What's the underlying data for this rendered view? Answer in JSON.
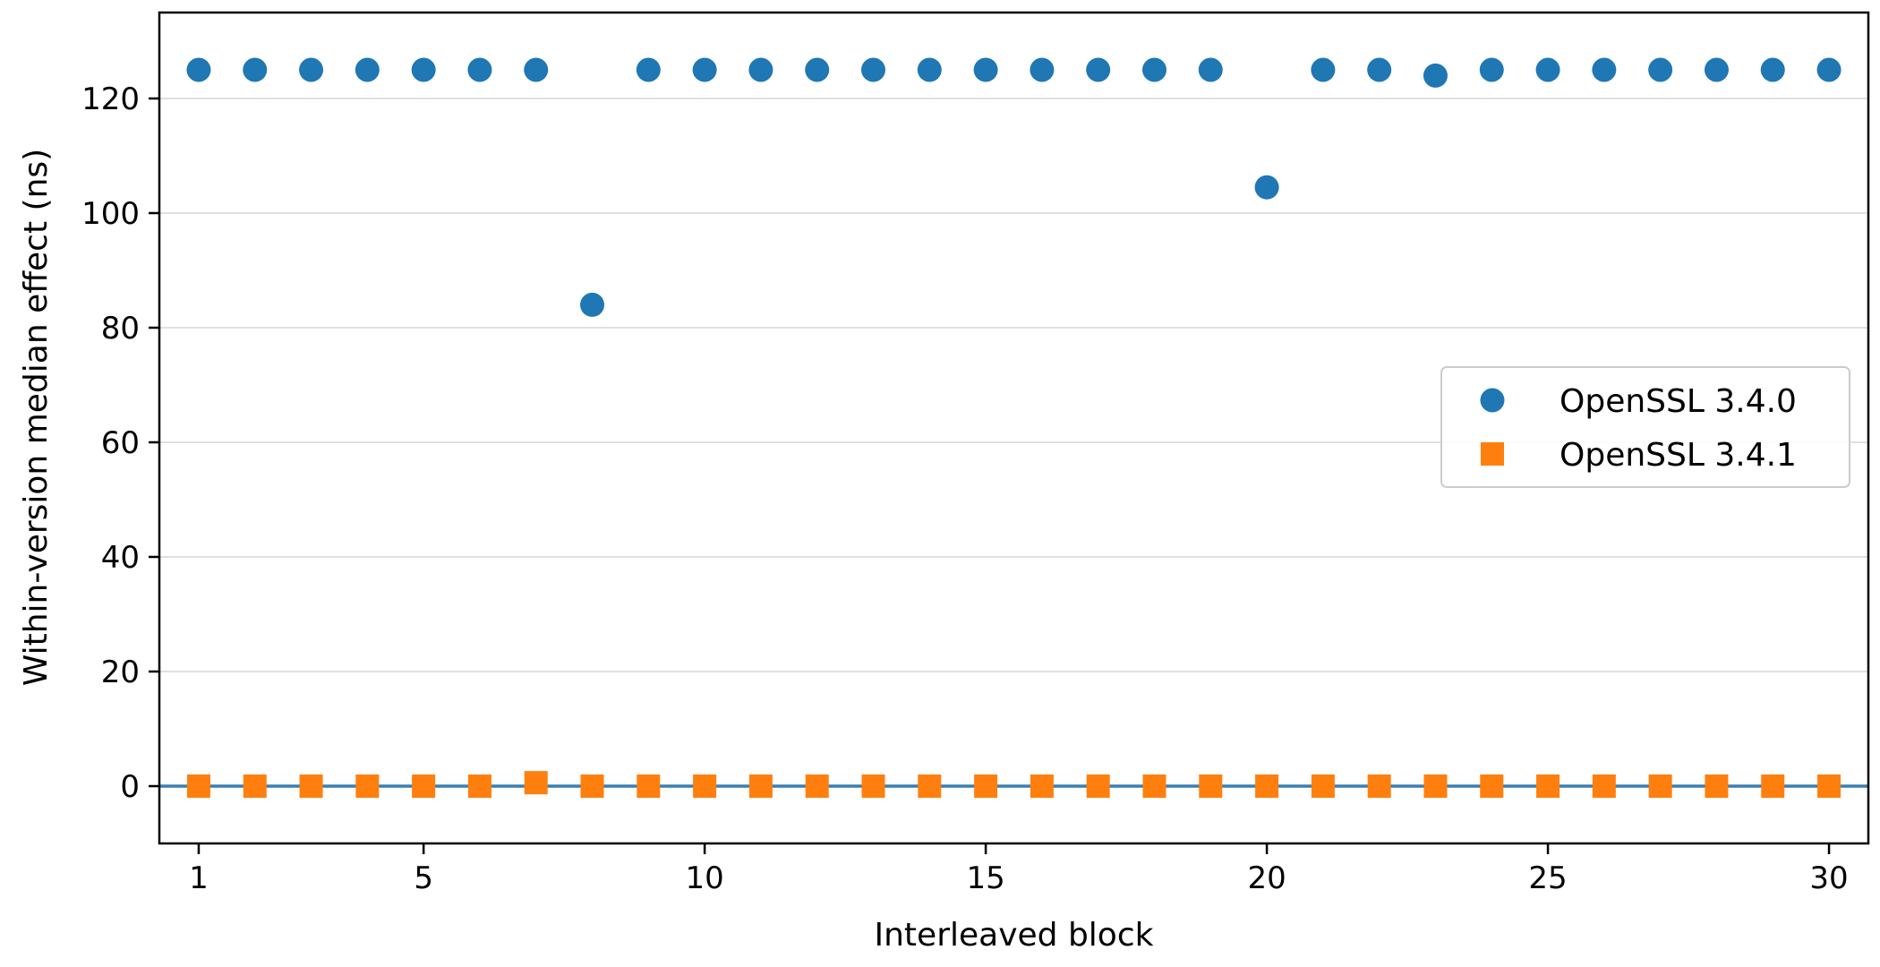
{
  "chart_data": {
    "type": "scatter",
    "xlabel": "Interleaved block",
    "ylabel": "Within-version median effect (ns)",
    "xlim": [
      0.3,
      30.7
    ],
    "ylim": [
      -10,
      135
    ],
    "xticks": [
      1,
      5,
      10,
      15,
      20,
      25,
      30
    ],
    "yticks": [
      0,
      20,
      40,
      60,
      80,
      100,
      120
    ],
    "grid": "horizontal",
    "legend_position": "center-right",
    "reference_line": {
      "y": 0,
      "color": "#3b7fb0"
    },
    "series": [
      {
        "name": "OpenSSL 3.4.0",
        "marker": "circle",
        "color": "#1f77b4",
        "x": [
          1,
          2,
          3,
          4,
          5,
          6,
          7,
          8,
          9,
          10,
          11,
          12,
          13,
          14,
          15,
          16,
          17,
          18,
          19,
          20,
          21,
          22,
          23,
          24,
          25,
          26,
          27,
          28,
          29,
          30
        ],
        "y": [
          125,
          125,
          125,
          125,
          125,
          125,
          125,
          84,
          125,
          125,
          125,
          125,
          125,
          125,
          125,
          125,
          125,
          125,
          125,
          104.5,
          125,
          125,
          124,
          125,
          125,
          125,
          125,
          125,
          125,
          125
        ]
      },
      {
        "name": "OpenSSL 3.4.1",
        "marker": "square",
        "color": "#ff7f0e",
        "x": [
          1,
          2,
          3,
          4,
          5,
          6,
          7,
          8,
          9,
          10,
          11,
          12,
          13,
          14,
          15,
          16,
          17,
          18,
          19,
          20,
          21,
          22,
          23,
          24,
          25,
          26,
          27,
          28,
          29,
          30
        ],
        "y": [
          0,
          0,
          0,
          0,
          0,
          0,
          0.6,
          0,
          0,
          0,
          0,
          0,
          0,
          0,
          0,
          0,
          0,
          0,
          0,
          0,
          0,
          0,
          0,
          0,
          0,
          0,
          0,
          0,
          0,
          0
        ]
      }
    ]
  }
}
